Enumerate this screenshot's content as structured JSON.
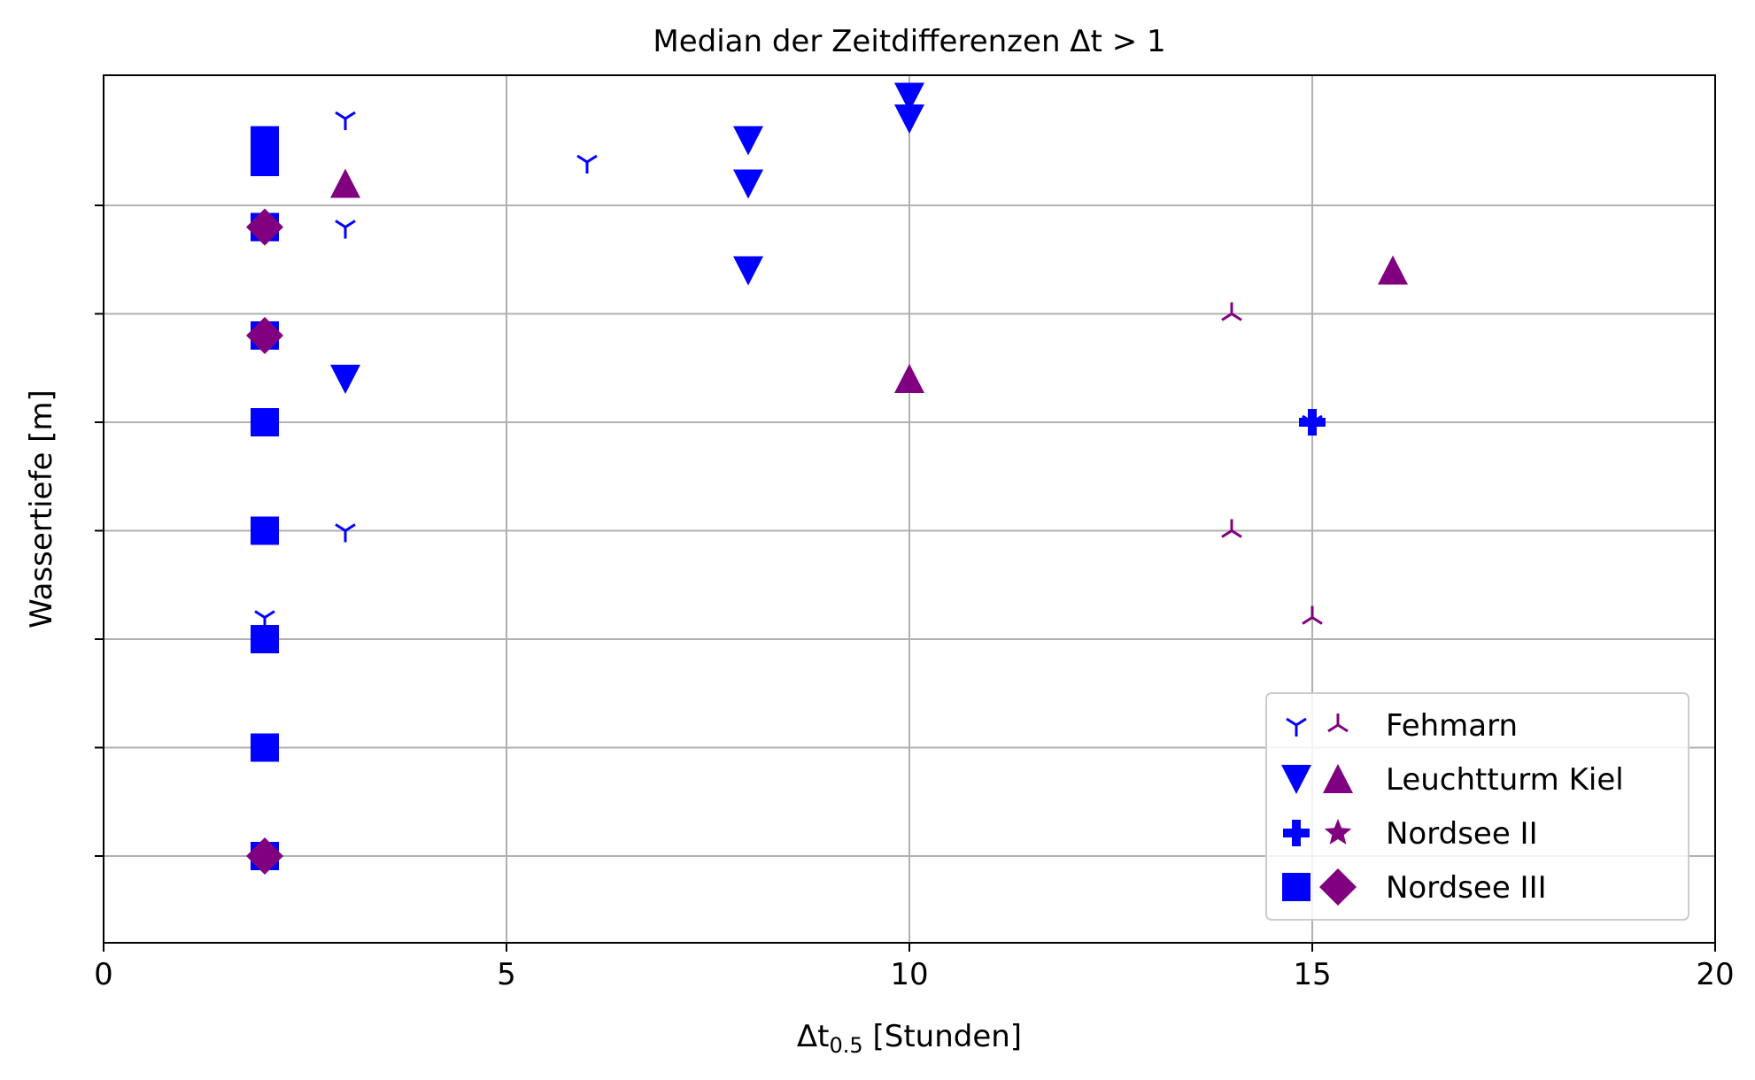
{
  "chart_data": {
    "type": "scatter",
    "title": "Median der Zeitdifferenzen Δt > 1",
    "xlabel_main": "Δt",
    "xlabel_sub": "0.5",
    "xlabel_rest": " [Stunden]",
    "ylabel": "Wassertiefe [m]",
    "xlim": [
      0,
      20
    ],
    "ylim": [
      -0.8,
      7.2
    ],
    "x_ticks": [
      0,
      5,
      10,
      15,
      20
    ],
    "x_tick_labels": [
      "0",
      "5",
      "10",
      "15",
      "20"
    ],
    "y_ticks": [
      0,
      1,
      2,
      3,
      4,
      5,
      6
    ],
    "grid": true,
    "legend_position": "lower right",
    "colors": {
      "blue": "#0000ff",
      "purple": "#800080"
    },
    "series": [
      {
        "name": "Fehmarn",
        "marker": "tri_down",
        "color": "blue",
        "points": [
          [
            3,
            6.8
          ],
          [
            6,
            6.4
          ],
          [
            3,
            5.8
          ],
          [
            3,
            3.0
          ],
          [
            2,
            2.2
          ],
          [
            15,
            4.0
          ]
        ]
      },
      {
        "name": "Fehmarn",
        "marker": "tri_up",
        "color": "purple",
        "points": [
          [
            14,
            5.0
          ],
          [
            14,
            3.0
          ],
          [
            15,
            2.2
          ]
        ]
      },
      {
        "name": "Leuchtturm Kiel",
        "marker": "triangle_down",
        "color": "blue",
        "points": [
          [
            10,
            7.0
          ],
          [
            10,
            6.8
          ],
          [
            8,
            6.6
          ],
          [
            8,
            6.2
          ],
          [
            8,
            5.4
          ],
          [
            3,
            4.4
          ]
        ]
      },
      {
        "name": "Leuchtturm Kiel",
        "marker": "triangle_up",
        "color": "purple",
        "points": [
          [
            3,
            6.2
          ],
          [
            16,
            5.4
          ],
          [
            10,
            4.4
          ]
        ]
      },
      {
        "name": "Nordsee II",
        "marker": "plus",
        "color": "blue",
        "points": [
          [
            2,
            5.8
          ],
          [
            2,
            4.8
          ],
          [
            2,
            0.0
          ],
          [
            15,
            4.0
          ]
        ]
      },
      {
        "name": "Nordsee II",
        "marker": "star",
        "color": "purple",
        "points": [
          [
            2,
            5.8
          ],
          [
            2,
            4.8
          ]
        ]
      },
      {
        "name": "Nordsee III",
        "marker": "square",
        "color": "blue",
        "points": [
          [
            2,
            6.6
          ],
          [
            2,
            6.4
          ],
          [
            2,
            5.8
          ],
          [
            2,
            4.8
          ],
          [
            2,
            4.0
          ],
          [
            2,
            3.0
          ],
          [
            2,
            2.0
          ],
          [
            2,
            1.0
          ],
          [
            2,
            0.0
          ]
        ]
      },
      {
        "name": "Nordsee III",
        "marker": "diamond",
        "color": "purple",
        "points": [
          [
            2,
            5.8
          ],
          [
            2,
            4.8
          ],
          [
            2,
            0.0
          ]
        ]
      }
    ],
    "legend": [
      {
        "label": "Fehmarn",
        "markers": [
          "tri_down",
          "tri_up"
        ]
      },
      {
        "label": "Leuchtturm Kiel",
        "markers": [
          "triangle_down",
          "triangle_up"
        ]
      },
      {
        "label": "Nordsee II",
        "markers": [
          "plus",
          "star"
        ]
      },
      {
        "label": "Nordsee III",
        "markers": [
          "square",
          "diamond"
        ]
      }
    ]
  }
}
